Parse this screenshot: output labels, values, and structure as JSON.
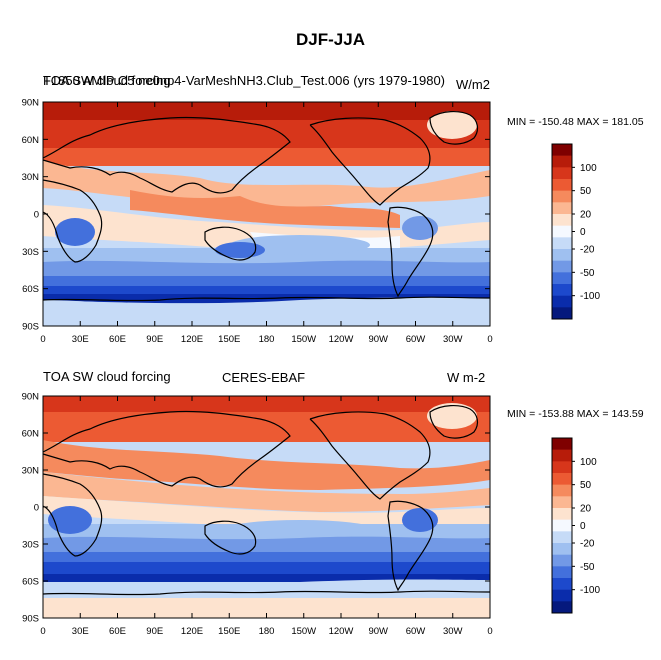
{
  "figure": {
    "title": "DJF-JJA"
  },
  "panels": [
    {
      "left_label": "TOA SW cloud forcing",
      "center_label": "F1850 AMIP C5 ne0np4-VarMeshNH3.Club_Test.006 (yrs 1979-1980)",
      "right_label": "W/m2",
      "minmax": "MIN = -150.48 MAX = 181.05"
    },
    {
      "left_label": "TOA SW cloud forcing",
      "center_label": "CERES-EBAF",
      "right_label": "W m-2",
      "minmax": "MIN = -153.88 MAX = 143.59"
    }
  ],
  "axes": {
    "lat_ticks": [
      "90N",
      "60N",
      "30N",
      "0",
      "30S",
      "60S",
      "90S"
    ],
    "lon_ticks": [
      "0",
      "30E",
      "60E",
      "90E",
      "120E",
      "150E",
      "180",
      "150W",
      "120W",
      "90W",
      "60W",
      "30W",
      "0"
    ]
  },
  "colorbar": {
    "labels": [
      "100",
      "50",
      "20",
      "0",
      "-20",
      "-50",
      "-100"
    ],
    "colors_top_to_bottom": [
      "#7f0000",
      "#b71c0a",
      "#d7361b",
      "#ec5a33",
      "#f58a5d",
      "#fbb792",
      "#fde3cf",
      "#f5f9ff",
      "#c6dbf7",
      "#9fc0f0",
      "#7299e6",
      "#4370dc",
      "#1d49cc",
      "#0a2cab",
      "#05197d"
    ]
  }
}
